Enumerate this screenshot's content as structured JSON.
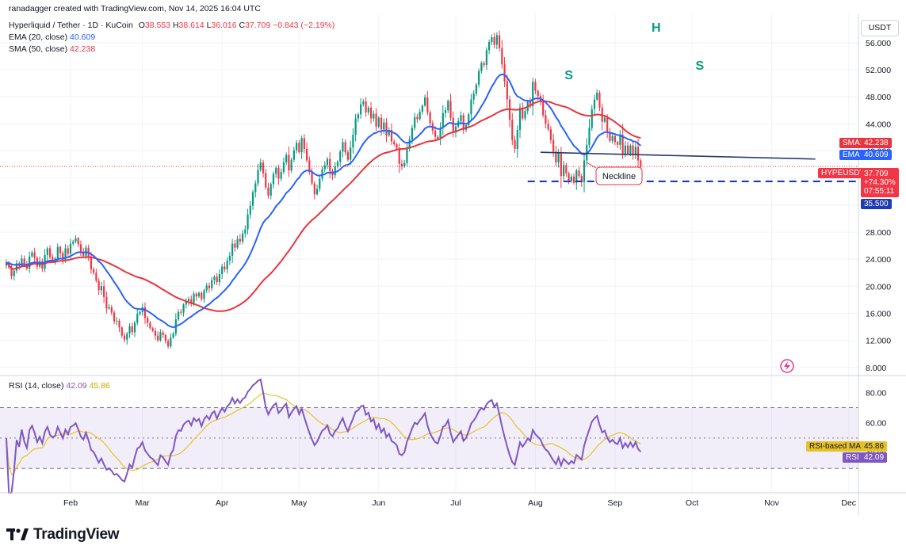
{
  "header": {
    "author_line": "ranadagger created with TradingView.com, Nov 14, 2025 16:04 UTC",
    "symbol": "Hyperliquid / Tether · 1D · KuCoin",
    "ohlc": {
      "o_label": "O",
      "o": "38.553",
      "h_label": "H",
      "h": "38.614",
      "l_label": "L",
      "l": "36.016",
      "c_label": "C",
      "c": "37.709",
      "change": "−0.843 (−2.19%)"
    },
    "ema_label": "EMA (20, close)",
    "ema_value": "40.609",
    "sma_label": "SMA (50, close)",
    "sma_value": "42.238",
    "rsi_label": "RSI (14, close)",
    "rsi_value": "42.09",
    "rsi_ma_value": "45.86"
  },
  "currency": "USDT",
  "labels": {
    "sma_ma": "SMA:MA",
    "sma_ma_val": "42.238",
    "ema": "EMA",
    "ema_val": "40.609",
    "pair": "HYPEUSDT",
    "price": "37.709",
    "pct": "+74.30%",
    "countdown": "07:55:11",
    "support": "35.500",
    "rsi_ma": "RSI-based MA",
    "rsi_ma_val": "45.86",
    "rsi": "RSI",
    "rsi_val": "42.09"
  },
  "annotations": {
    "left_shoulder": "S",
    "head": "H",
    "right_shoulder": "S",
    "neckline": "Neckline"
  },
  "footer": {
    "brand": "TradingView"
  },
  "colors": {
    "up": "#089981",
    "down": "#f23645",
    "ema": "#2962ff",
    "sma": "#e8343e",
    "rsi": "#7e57c2",
    "rsi_ma": "#e6c229",
    "neck": "#2a3a6b",
    "support": "#1f3bb3",
    "annot": "#089981"
  },
  "chart_data": [
    {
      "type": "candlestick",
      "title": "Hyperliquid / Tether · 1D · KuCoin",
      "y_ticks": [
        "56.000",
        "52.000",
        "48.000",
        "44.000",
        "40.000",
        "36.000",
        "32.000",
        "28.000",
        "24.000",
        "20.000",
        "16.000",
        "12.000",
        "8.000"
      ],
      "x_ticks": [
        "Feb",
        "Mar",
        "Apr",
        "May",
        "Jun",
        "Jul",
        "Aug",
        "Sep",
        "Oct",
        "Nov",
        "Dec"
      ],
      "ylim": [
        6.8,
        60.2
      ],
      "start": "2025-01-07",
      "closes": [
        23.5,
        22.8,
        21.5,
        22.3,
        23.4,
        23.0,
        24.1,
        23.2,
        22.6,
        24.4,
        25.0,
        24.2,
        22.9,
        23.7,
        22.6,
        24.6,
        25.6,
        24.3,
        23.8,
        24.1,
        25.8,
        24.9,
        23.9,
        25.6,
        24.8,
        26.3,
        26.6,
        27.1,
        26.2,
        25.0,
        24.5,
        25.7,
        24.4,
        22.5,
        22.0,
        20.8,
        19.4,
        20.0,
        18.4,
        16.7,
        16.9,
        16.1,
        14.8,
        14.9,
        13.9,
        12.7,
        12.1,
        13.0,
        14.1,
        13.2,
        14.6,
        15.9,
        16.2,
        16.9,
        15.3,
        14.6,
        13.8,
        13.4,
        12.7,
        12.0,
        13.2,
        12.8,
        11.9,
        11.1,
        12.4,
        13.0,
        15.1,
        16.2,
        16.1,
        17.3,
        17.8,
        18.1,
        17.5,
        18.9,
        18.5,
        19.0,
        18.1,
        19.4,
        20.1,
        19.7,
        20.9,
        21.4,
        20.6,
        21.8,
        22.9,
        22.5,
        23.8,
        24.5,
        26.3,
        25.7,
        27.0,
        26.6,
        27.8,
        28.4,
        30.6,
        31.9,
        33.9,
        35.2,
        37.2,
        38.3,
        36.7,
        34.6,
        33.4,
        35.1,
        36.6,
        37.5,
        35.9,
        36.9,
        38.3,
        39.4,
        37.1,
        38.7,
        40.1,
        41.2,
        39.8,
        41.9,
        40.3,
        38.6,
        36.9,
        35.2,
        33.6,
        34.4,
        35.9,
        37.3,
        37.9,
        38.8,
        37.0,
        36.4,
        37.7,
        38.4,
        39.9,
        41.3,
        39.8,
        38.7,
        40.5,
        42.4,
        44.8,
        45.4,
        46.9,
        47.3,
        45.7,
        46.4,
        44.8,
        45.5,
        43.6,
        44.9,
        43.2,
        44.2,
        42.3,
        43.1,
        41.4,
        41.0,
        40.4,
        38.1,
        37.7,
        38.2,
        40.3,
        41.7,
        43.4,
        45.0,
        44.7,
        45.8,
        46.7,
        47.9,
        45.7,
        44.1,
        43.0,
        42.1,
        41.8,
        43.4,
        45.6,
        46.0,
        47.4,
        44.9,
        42.7,
        43.6,
        44.4,
        45.3,
        43.1,
        43.8,
        45.4,
        47.6,
        48.5,
        49.8,
        51.8,
        53.0,
        52.7,
        54.9,
        56.1,
        56.8,
        55.7,
        57.1,
        55.2,
        52.8,
        50.3,
        47.6,
        44.6,
        41.6,
        40.3,
        43.1,
        46.4,
        44.8,
        45.9,
        47.3,
        46.6,
        50.2,
        48.9,
        48.1,
        47.3,
        45.3,
        44.0,
        43.2,
        41.6,
        39.9,
        38.3,
        39.8,
        36.3,
        37.9,
        36.7,
        35.5,
        36.2,
        35.3,
        37.1,
        36.3,
        35.4,
        38.6,
        40.9,
        43.4,
        46.2,
        47.6,
        48.6,
        46.4,
        44.3,
        44.9,
        42.8,
        41.5,
        42.2,
        41.3,
        40.9,
        42.4,
        39.6,
        40.8,
        39.6,
        40.8,
        39.4,
        40.6,
        38.6,
        37.7
      ],
      "support_level": 35.5,
      "neckline": [
        [
          "2025-08-03",
          39.8
        ],
        [
          "2025-11-18",
          38.8
        ]
      ]
    },
    {
      "type": "line",
      "title": "RSI (14, close)",
      "y_ticks": [
        "80.00",
        "60.00",
        "40.00"
      ],
      "ylim": [
        14,
        89
      ],
      "bands": [
        30,
        70
      ]
    }
  ]
}
